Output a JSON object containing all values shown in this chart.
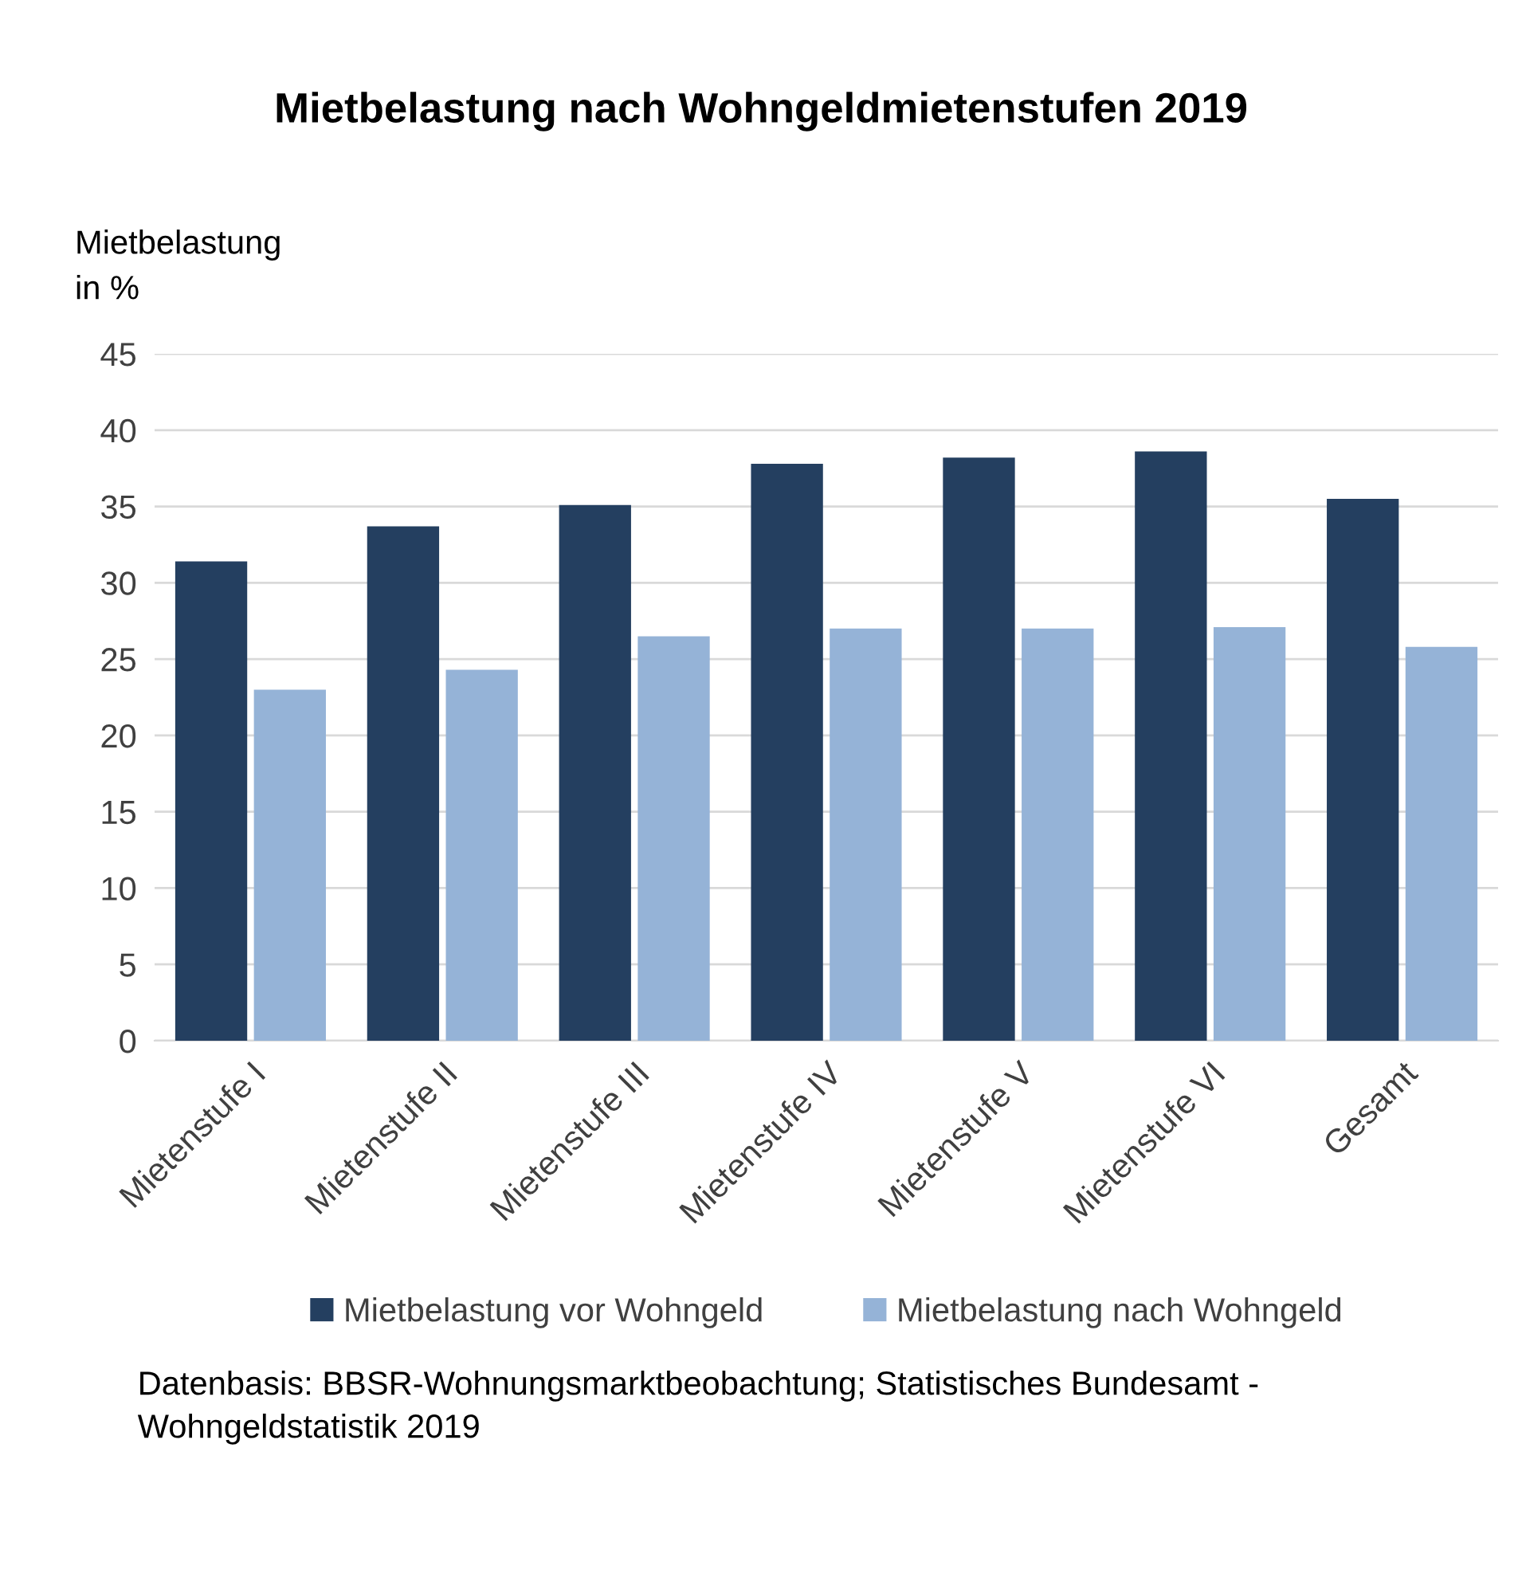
{
  "chart_data": {
    "type": "bar",
    "title": "Mietbelastung nach Wohngeldmietenstufen 2019",
    "ylabel": "Mietbelastung\nin %",
    "categories": [
      "Mietenstufe I",
      "Mietenstufe II",
      "Mietenstufe III",
      "Mietenstufe IV",
      "Mietenstufe V",
      "Mietenstufe VI",
      "Gesamt"
    ],
    "series": [
      {
        "name": "Mietbelastung vor Wohngeld",
        "color": "#243f60",
        "values": [
          31.4,
          33.7,
          35.1,
          37.8,
          38.2,
          38.6,
          35.5
        ]
      },
      {
        "name": "Mietbelastung nach Wohngeld",
        "color": "#95b3d7",
        "values": [
          23.0,
          24.3,
          26.5,
          27.0,
          27.0,
          27.1,
          25.8
        ]
      }
    ],
    "ylim": [
      0,
      45
    ],
    "yticks": [
      0,
      5,
      10,
      15,
      20,
      25,
      30,
      35,
      40,
      45
    ],
    "grid": "y",
    "legend": "bottom",
    "annotations": [
      "Datenbasis: BBSR-Wohnungsmarktbeobachtung; Statistisches Bundesamt - Wohngeldstatistik 2019"
    ]
  }
}
